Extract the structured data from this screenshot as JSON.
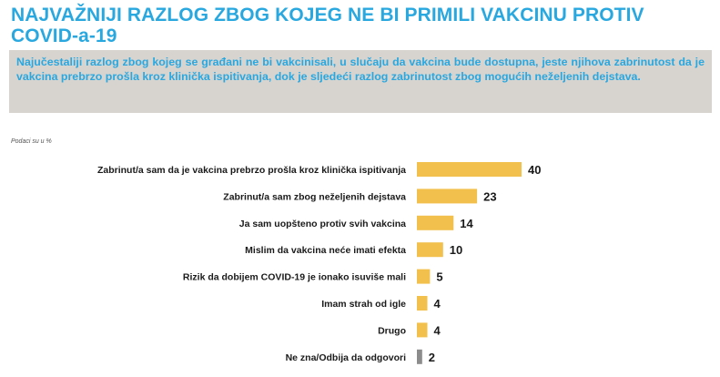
{
  "header": {
    "title": "NAJVAŽNIJI RAZLOG ZBOG KOJEG NE BI PRIMILI VAKCINU PROTIV COVID-a-19",
    "summary": "Najučestaliji razlog zbog kojeg se građani ne bi vakcinisali, u slučaju da vakcina bude dostupna, jeste njihova zabrinutost da je vakcina prebrzo prošla kroz klinička ispitivanja, dok je sljedeći razlog zabrinutost zbog mogućih neželjenih dejstava.",
    "note": "Podaci su u %"
  },
  "colors": {
    "title": "#29a8e0",
    "summary_bg": "#d7d3cf",
    "bar": "#f2c04c",
    "bar_dk": "#8c8c8c"
  },
  "chart_data": {
    "type": "bar",
    "orientation": "horizontal",
    "categories": [
      "Zabrinut/a sam da je vakcina prebrzo prošla kroz klinička ispitivanja",
      "Zabrinut/a sam zbog neželjenih dejstava",
      "Ja sam uopšteno protiv svih vakcina",
      "Mislim da vakcina neće imati efekta",
      "Rizik da dobijem COVID-19 je ionako isuviše mali",
      "Imam strah od igle",
      "Drugo",
      "Ne zna/Odbija da odgovori"
    ],
    "values": [
      40,
      23,
      14,
      10,
      5,
      4,
      4,
      2
    ],
    "bar_colors": [
      "#f2c04c",
      "#f2c04c",
      "#f2c04c",
      "#f2c04c",
      "#f2c04c",
      "#f2c04c",
      "#f2c04c",
      "#8c8c8c"
    ],
    "xlim": [
      0,
      40
    ],
    "grid": false,
    "legend": "none",
    "data_labels": true
  }
}
